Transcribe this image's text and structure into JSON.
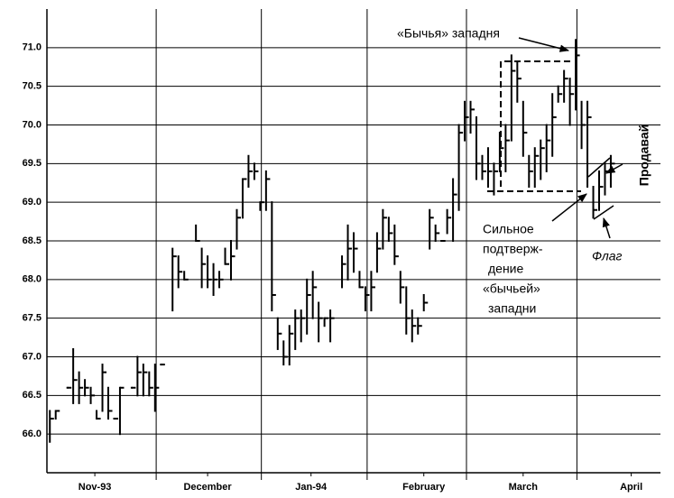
{
  "chart_data": {
    "type": "ohlc",
    "color": "#000000",
    "x": [
      0,
      1,
      3,
      4,
      5,
      6,
      7,
      8,
      9,
      10,
      11,
      12,
      14,
      15,
      16,
      17,
      18,
      19,
      21,
      22,
      23,
      25,
      26,
      27,
      28,
      29,
      30,
      31,
      32,
      33,
      34,
      35,
      36,
      37,
      38,
      39,
      40,
      41,
      42,
      43,
      44,
      45,
      46,
      47,
      48,
      50,
      51,
      52,
      53,
      54,
      55,
      56,
      57,
      58,
      59,
      60,
      61,
      62,
      63,
      64,
      65,
      66,
      67,
      68,
      69,
      70,
      71,
      72,
      73,
      74,
      75,
      76,
      77,
      78,
      79,
      80,
      81,
      82,
      83,
      84,
      85,
      86,
      87,
      88,
      89,
      90,
      91,
      92,
      93,
      94,
      95,
      96
    ],
    "high": [
      66.3,
      66.3,
      66.6,
      67.1,
      66.8,
      66.7,
      66.6,
      66.3,
      66.9,
      66.6,
      66.2,
      66.6,
      66.6,
      67.0,
      66.9,
      66.8,
      66.9,
      66.9,
      68.4,
      68.3,
      68.1,
      68.7,
      68.4,
      68.3,
      68.2,
      68.1,
      68.4,
      68.5,
      68.9,
      69.3,
      69.6,
      69.5,
      69.0,
      69.4,
      69.0,
      67.5,
      67.2,
      67.4,
      67.6,
      67.6,
      68.0,
      68.1,
      67.7,
      67.5,
      67.6,
      68.3,
      68.7,
      68.6,
      68.1,
      67.9,
      68.1,
      68.6,
      68.9,
      68.8,
      68.7,
      68.1,
      67.9,
      67.6,
      67.5,
      67.8,
      68.9,
      68.7,
      68.5,
      68.9,
      69.3,
      70.0,
      70.3,
      70.3,
      70.1,
      69.6,
      69.7,
      69.5,
      69.9,
      70.0,
      70.9,
      70.8,
      70.3,
      69.6,
      69.7,
      69.8,
      70.0,
      70.4,
      70.5,
      70.7,
      70.6,
      71.1,
      70.3,
      70.3,
      69.2,
      69.4,
      69.5,
      69.6
    ],
    "low": [
      65.9,
      66.2,
      66.6,
      66.4,
      66.4,
      66.5,
      66.4,
      66.2,
      66.3,
      66.2,
      66.2,
      66.0,
      66.6,
      66.5,
      66.5,
      66.5,
      66.3,
      66.9,
      67.6,
      67.9,
      68.0,
      68.5,
      67.9,
      67.9,
      67.8,
      67.9,
      68.2,
      68.0,
      68.4,
      68.8,
      69.2,
      69.3,
      68.9,
      68.9,
      67.6,
      67.1,
      66.9,
      66.9,
      67.1,
      67.2,
      67.3,
      67.5,
      67.2,
      67.4,
      67.2,
      67.9,
      68.0,
      68.1,
      67.9,
      67.6,
      67.6,
      68.1,
      68.4,
      68.5,
      68.2,
      67.7,
      67.3,
      67.2,
      67.3,
      67.6,
      68.4,
      68.5,
      68.5,
      68.6,
      68.5,
      68.9,
      69.8,
      69.9,
      69.3,
      69.3,
      69.2,
      69.1,
      69.4,
      69.4,
      69.8,
      70.3,
      69.6,
      69.2,
      69.2,
      69.3,
      69.4,
      69.6,
      70.3,
      70.3,
      70.0,
      70.2,
      69.7,
      69.2,
      68.8,
      68.9,
      69.1,
      69.2
    ],
    "close": [
      66.2,
      66.3,
      66.6,
      66.7,
      66.6,
      66.6,
      66.5,
      66.2,
      66.8,
      66.3,
      66.2,
      66.6,
      66.6,
      66.8,
      66.8,
      66.6,
      66.6,
      66.9,
      68.3,
      68.1,
      68.0,
      68.5,
      68.2,
      68.0,
      68.0,
      68.0,
      68.2,
      68.3,
      68.8,
      69.3,
      69.4,
      69.4,
      69.0,
      69.3,
      67.8,
      67.3,
      67.0,
      67.3,
      67.5,
      67.5,
      67.8,
      67.9,
      67.5,
      67.5,
      67.5,
      68.2,
      68.4,
      68.4,
      67.9,
      67.8,
      67.9,
      68.4,
      68.8,
      68.6,
      68.3,
      67.9,
      67.5,
      67.4,
      67.4,
      67.7,
      68.8,
      68.6,
      68.5,
      68.8,
      69.1,
      69.9,
      70.1,
      70.2,
      69.5,
      69.4,
      69.4,
      69.4,
      69.7,
      69.8,
      70.7,
      70.6,
      69.9,
      69.4,
      69.6,
      69.7,
      69.8,
      70.1,
      70.4,
      70.6,
      70.4,
      70.9,
      70.0,
      70.1,
      68.9,
      69.2,
      69.4,
      69.5
    ],
    "xlim": [
      0,
      105
    ],
    "xticks": [
      {
        "value": 8.2,
        "label": "Nov-93"
      },
      {
        "value": 27.5,
        "label": "December"
      },
      {
        "value": 45.2,
        "label": "Jan-94"
      },
      {
        "value": 64.5,
        "label": "February"
      },
      {
        "value": 81.5,
        "label": "March"
      },
      {
        "value": 100,
        "label": "April"
      }
    ],
    "xgrid": [
      18.7,
      36.7,
      54.8,
      71.8,
      90.7
    ],
    "ylim": [
      65.5,
      71.5
    ],
    "yticks": [
      {
        "value": 66,
        "label": "66.0"
      },
      66.5,
      {
        "value": 67,
        "label": "67.0"
      },
      67.5,
      {
        "value": 68,
        "label": "68.0"
      },
      68.5,
      {
        "value": 69,
        "label": "69.0"
      },
      69.5,
      {
        "value": 70,
        "label": "70.0"
      },
      70.5,
      {
        "value": 71,
        "label": "71.0"
      }
    ],
    "grid": true,
    "annotations": [
      "«Бычья» западня",
      [
        "Сильное",
        "подтверж-",
        "дение",
        "«бычьей»",
        "западни"
      ],
      "Флаг",
      "Продавай"
    ]
  }
}
